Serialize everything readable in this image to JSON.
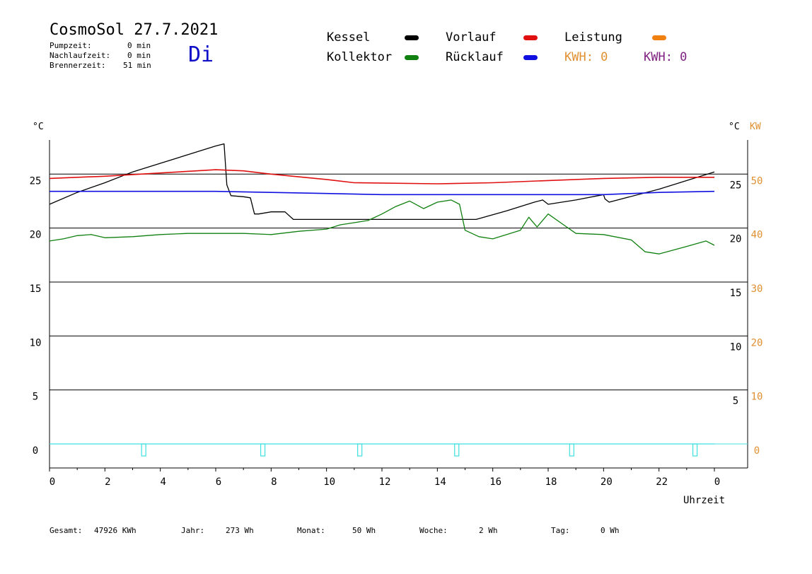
{
  "header": {
    "title": "CosmoSol 27.7.2021",
    "day": "Di",
    "info": [
      {
        "label": "Pumpzeit:",
        "value": "0 min"
      },
      {
        "label": "Nachlaufzeit:",
        "value": "0 min"
      },
      {
        "label": "Brennerzeit:",
        "value": "51 min"
      }
    ]
  },
  "legend": {
    "items": [
      {
        "label": "Kessel",
        "color": "#000000"
      },
      {
        "label": "Kollektor",
        "color": "#108010"
      },
      {
        "label": "Vorlauf",
        "color": "#e01010"
      },
      {
        "label": "Rücklauf",
        "color": "#1010e0"
      },
      {
        "label": "Leistung",
        "color": "#f08010"
      }
    ],
    "kwh_orange": "KWH: 0",
    "kwh_purple": "KWH: 0",
    "kwh_orange_color": "#e09030",
    "kwh_purple_color": "#802080"
  },
  "axes": {
    "left_unit": "°C",
    "right_unit": "°C",
    "right2_unit": "KW",
    "xlabel": "Uhrzeit"
  },
  "stats": [
    {
      "label": "Gesamt:",
      "value": "47926 KWh"
    },
    {
      "label": "Jahr:",
      "value": "273 Wh"
    },
    {
      "label": "Monat:",
      "value": "50 Wh"
    },
    {
      "label": "Woche:",
      "value": "2 Wh"
    },
    {
      "label": "Tag:",
      "value": "0 Wh"
    }
  ],
  "chart_data": {
    "type": "line",
    "x_ticks": [
      "0",
      "2",
      "4",
      "6",
      "8",
      "10",
      "12",
      "14",
      "16",
      "18",
      "20",
      "22",
      "0"
    ],
    "y_left_ticks": [
      "0",
      "5",
      "10",
      "15",
      "20",
      "25"
    ],
    "y_right_ticks": [
      "5",
      "10",
      "15",
      "20",
      "25"
    ],
    "y_right2_ticks": [
      "0",
      "10",
      "20",
      "30",
      "40",
      "50"
    ],
    "xlim": [
      0,
      24
    ],
    "ylim": [
      -2.2,
      28.5
    ],
    "gridlines_y": [
      0,
      5,
      10,
      15,
      20,
      25
    ],
    "series": [
      {
        "name": "Kessel",
        "color": "#000000",
        "x": [
          0,
          1,
          2,
          3,
          4,
          5,
          6,
          6.3,
          6.4,
          6.55,
          7.0,
          7.25,
          7.4,
          7.55,
          8.0,
          8.5,
          8.8,
          12,
          14,
          15.4,
          16.5,
          17.5,
          17.8,
          18.0,
          19,
          20.0,
          20.05,
          20.2,
          22,
          24
        ],
        "y": [
          22.2,
          23.3,
          24.2,
          25.2,
          26.0,
          26.8,
          27.6,
          27.8,
          24.0,
          23.0,
          22.9,
          22.8,
          21.3,
          21.3,
          21.5,
          21.5,
          20.8,
          20.8,
          20.8,
          20.8,
          21.6,
          22.4,
          22.6,
          22.2,
          22.6,
          23.1,
          22.7,
          22.4,
          23.6,
          25.2
        ]
      },
      {
        "name": "Vorlauf",
        "color": "#e01010",
        "x": [
          0,
          2,
          4,
          6,
          7,
          8,
          10,
          11,
          14,
          16,
          18,
          20,
          22,
          24
        ],
        "y": [
          24.6,
          24.8,
          25.1,
          25.4,
          25.3,
          25.0,
          24.5,
          24.2,
          24.1,
          24.2,
          24.4,
          24.6,
          24.7,
          24.7
        ]
      },
      {
        "name": "Rücklauf",
        "color": "#1010e0",
        "x": [
          0,
          2,
          4,
          6,
          8,
          10,
          12,
          14,
          16,
          18,
          20,
          22,
          24
        ],
        "y": [
          23.4,
          23.4,
          23.4,
          23.4,
          23.3,
          23.2,
          23.1,
          23.1,
          23.1,
          23.1,
          23.1,
          23.3,
          23.4
        ]
      },
      {
        "name": "Kollektor",
        "color": "#108010",
        "x": [
          0,
          0.5,
          1,
          1.5,
          2,
          3,
          4,
          5,
          6,
          7,
          8,
          9,
          10,
          10.5,
          11,
          11.5,
          12,
          12.5,
          13,
          13.5,
          14,
          14.5,
          14.8,
          15.0,
          15.5,
          16,
          17,
          17.3,
          17.6,
          18,
          18.5,
          19,
          20,
          21,
          21.5,
          22,
          23,
          23.7,
          24
        ],
        "y": [
          18.8,
          19.0,
          19.3,
          19.4,
          19.1,
          19.2,
          19.4,
          19.5,
          19.5,
          19.5,
          19.4,
          19.7,
          19.9,
          20.3,
          20.5,
          20.7,
          21.3,
          22.0,
          22.5,
          21.8,
          22.4,
          22.6,
          22.2,
          19.8,
          19.2,
          19.0,
          19.8,
          21.0,
          20.1,
          21.3,
          20.4,
          19.5,
          19.4,
          18.9,
          17.8,
          17.6,
          18.3,
          18.8,
          18.4
        ]
      },
      {
        "name": "Leistung",
        "color": "#40e0e0",
        "x": [
          0,
          24
        ],
        "y": [
          0,
          0
        ]
      }
    ]
  }
}
